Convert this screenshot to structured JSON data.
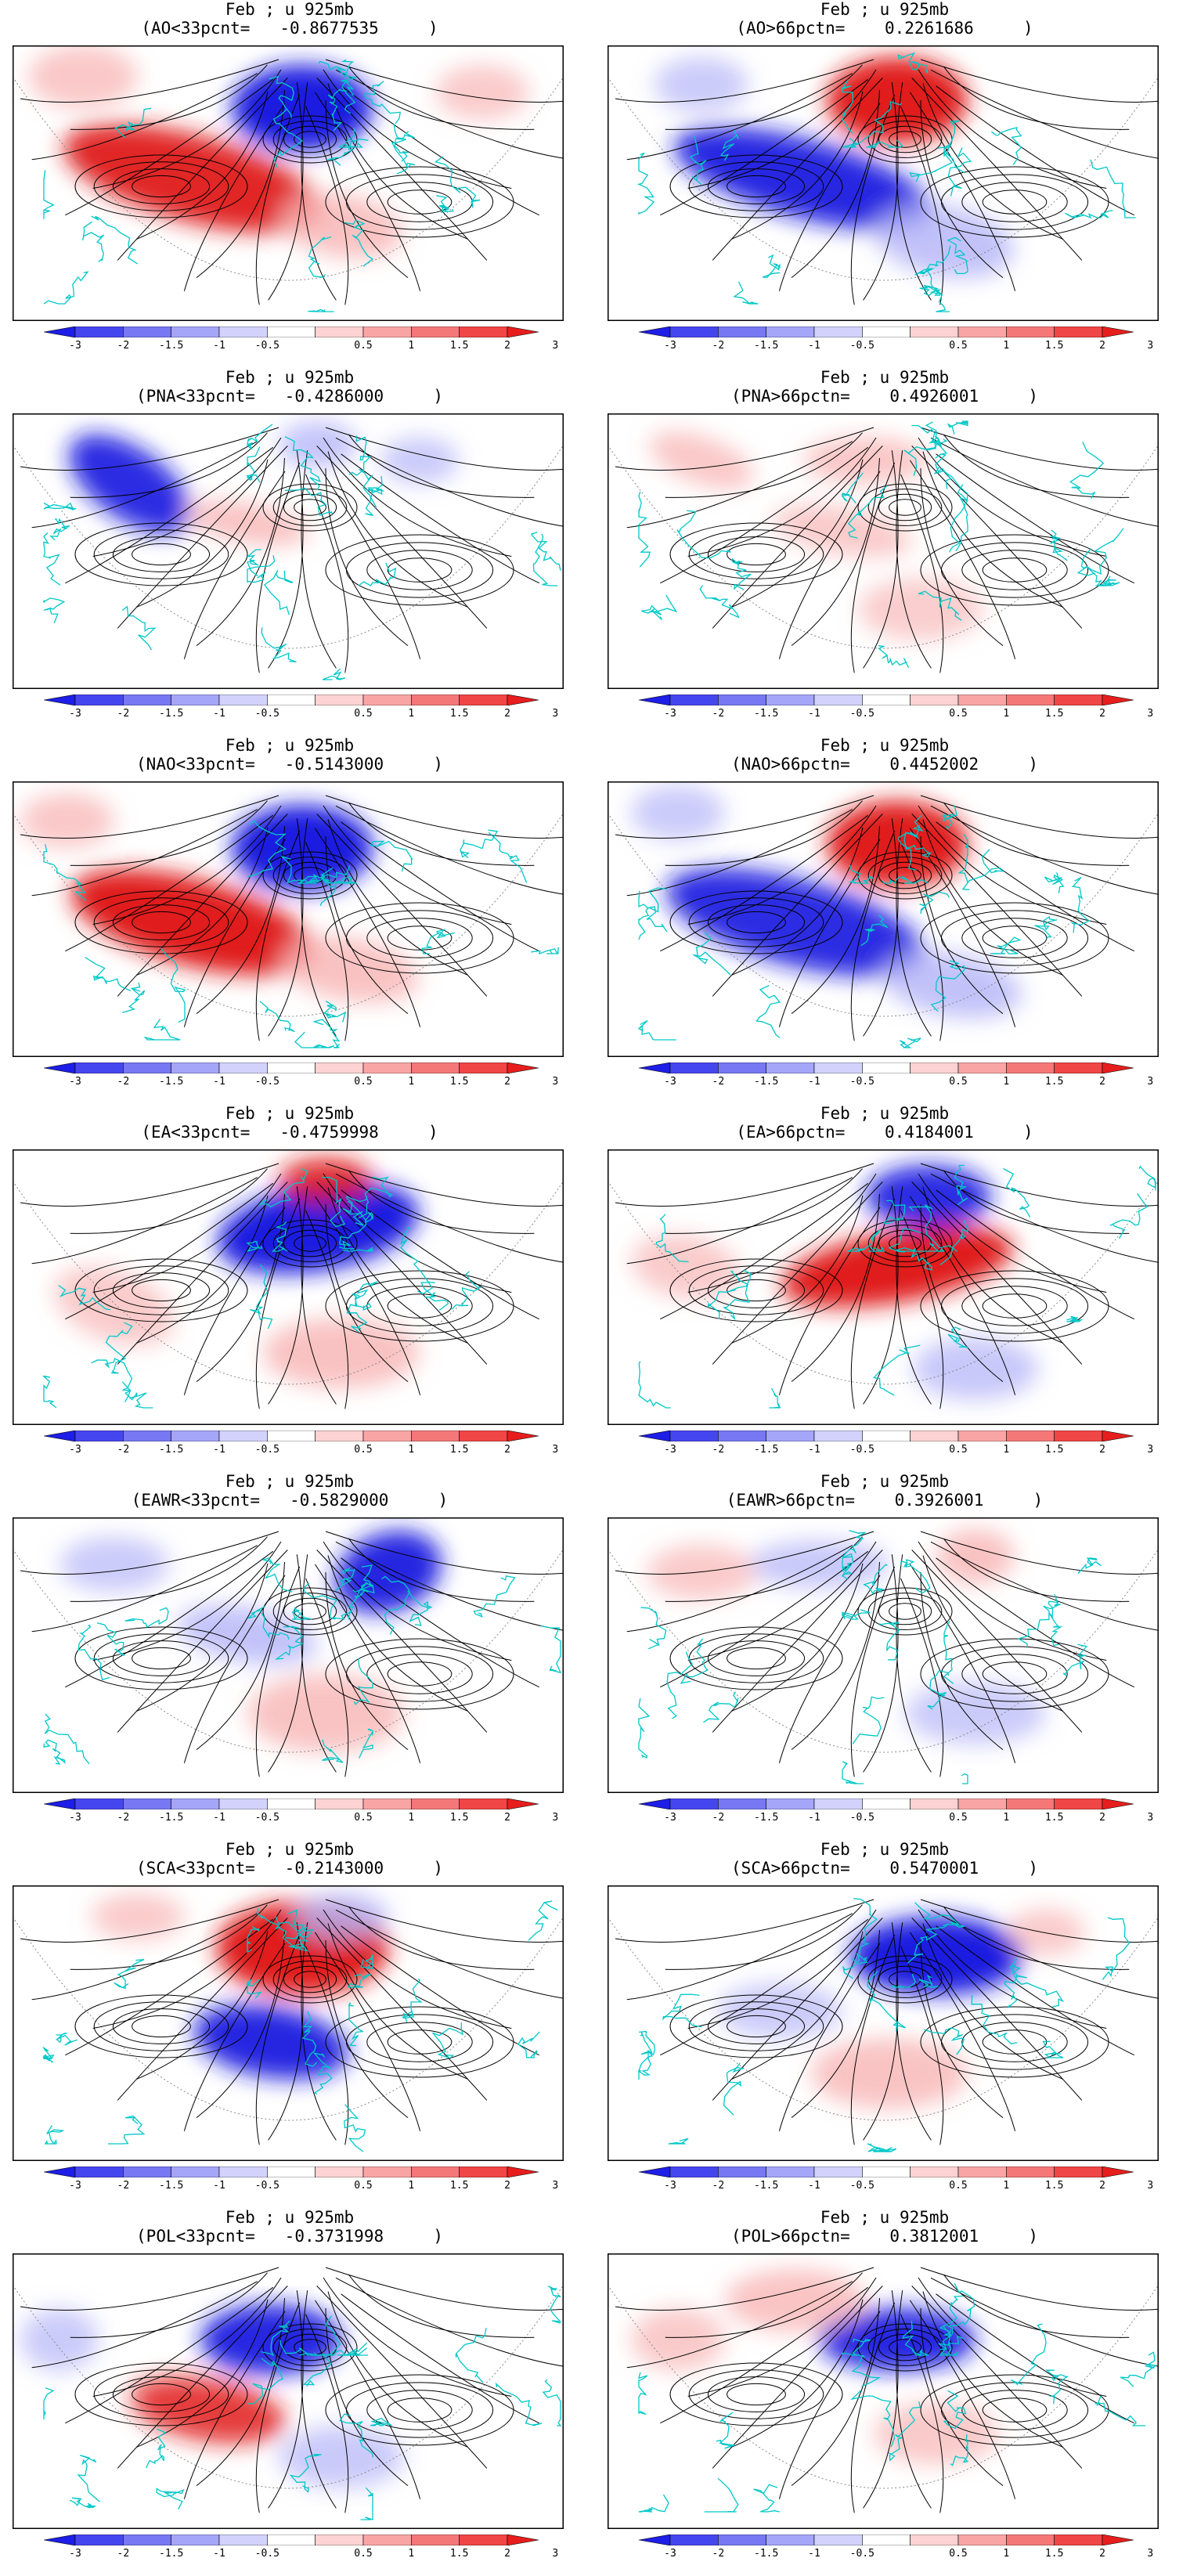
{
  "panels": [
    {
      "line1": "Feb ; u 925mb",
      "line2": "(AO<33pcnt=   -0.8677535     )",
      "pattern": "AO-neg"
    },
    {
      "line1": "Feb ; u 925mb",
      "line2": "(AO>66pctn=    0.2261686     )",
      "pattern": "AO-pos"
    },
    {
      "line1": "Feb ; u 925mb",
      "line2": "(PNA<33pcnt=   -0.4286000     )",
      "pattern": "PNA-neg"
    },
    {
      "line1": "Feb ; u 925mb",
      "line2": "(PNA>66pctn=    0.4926001     )",
      "pattern": "PNA-pos"
    },
    {
      "line1": "Feb ; u 925mb",
      "line2": "(NAO<33pcnt=   -0.5143000     )",
      "pattern": "NAO-neg"
    },
    {
      "line1": "Feb ; u 925mb",
      "line2": "(NAO>66pctn=    0.4452002     )",
      "pattern": "NAO-pos"
    },
    {
      "line1": "Feb ; u 925mb",
      "line2": "(EA<33pcnt=   -0.4759998     )",
      "pattern": "EA-neg"
    },
    {
      "line1": "Feb ; u 925mb",
      "line2": "(EA>66pctn=    0.4184001     )",
      "pattern": "EA-pos"
    },
    {
      "line1": "Feb ; u 925mb",
      "line2": "(EAWR<33pcnt=   -0.5829000     )",
      "pattern": "EAWR-neg"
    },
    {
      "line1": "Feb ; u 925mb",
      "line2": "(EAWR>66pctn=    0.3926001     )",
      "pattern": "EAWR-pos"
    },
    {
      "line1": "Feb ; u 925mb",
      "line2": "(SCA<33pcnt=   -0.2143000     )",
      "pattern": "SCA-neg"
    },
    {
      "line1": "Feb ; u 925mb",
      "line2": "(SCA>66pctn=    0.5470001     )",
      "pattern": "SCA-pos"
    },
    {
      "line1": "Feb ; u 925mb",
      "line2": "(POL<33pcnt=   -0.3731998     )",
      "pattern": "POL-neg"
    },
    {
      "line1": "Feb ; u 925mb",
      "line2": "(POL>66pctn=    0.3812001     )",
      "pattern": "POL-pos"
    }
  ],
  "colorbar": {
    "labels": [
      "-3",
      "-2",
      "-1.5",
      "-1",
      "-0.5",
      "0.5",
      "1",
      "1.5",
      "2",
      "3"
    ],
    "colors": [
      "#1e1ee6",
      "#4646f0",
      "#7878f5",
      "#a5a5fa",
      "#d2d2fc",
      "#ffffff",
      "#fcd2d2",
      "#faa5a5",
      "#f57878",
      "#f04646",
      "#e61e1e"
    ]
  },
  "colors": {
    "streamline": "#000000",
    "coastline": "#00c8c8",
    "neg_strong": "#1a1ae0",
    "neg_weak": "#b4b4f8",
    "pos_strong": "#e01a1a",
    "pos_weak": "#f8b4b4"
  }
}
